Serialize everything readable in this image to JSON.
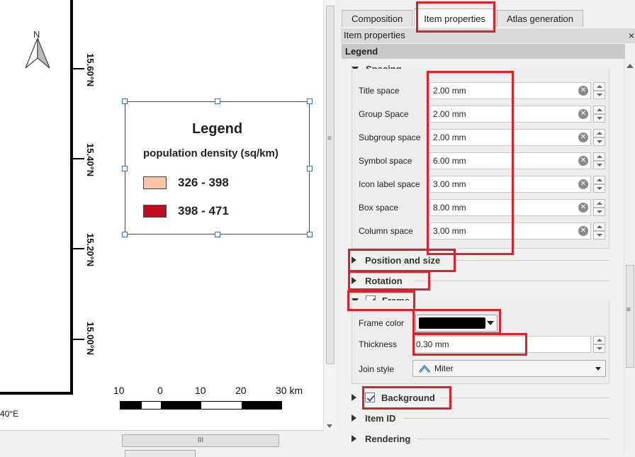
{
  "map": {
    "north_label": "N",
    "lat_labels": [
      "15.60°N",
      "15.40°N",
      "15.20°N",
      "15.00°N"
    ],
    "lon_label": "40°E",
    "legend": {
      "title": "Legend",
      "subtitle": "population density (sq/km)",
      "items": [
        {
          "label": "326 - 398",
          "color": "#fcc5a8"
        },
        {
          "label": "398 - 471",
          "color": "#c40a1f"
        }
      ]
    },
    "scale": {
      "labels": [
        "10",
        "0",
        "10",
        "20",
        "30 km"
      ]
    }
  },
  "hscroll_grip": "III",
  "panel": {
    "tabs": [
      {
        "label": "Composition",
        "active": false
      },
      {
        "label": "Item properties",
        "active": true
      },
      {
        "label": "Atlas generation",
        "active": false
      }
    ],
    "dock_title": "Item properties",
    "close_glyph": "×",
    "section": "Legend",
    "spacing": {
      "header": "Spacing",
      "rows": [
        {
          "label": "Title space",
          "value": "2.00 mm"
        },
        {
          "label": "Group Space",
          "value": "2.00 mm"
        },
        {
          "label": "Subgroup space",
          "value": "2.00 mm"
        },
        {
          "label": "Symbol space",
          "value": "6.00 mm"
        },
        {
          "label": "Icon label space",
          "value": "3.00 mm"
        },
        {
          "label": "Box space",
          "value": "8.00 mm"
        },
        {
          "label": "Column space",
          "value": "3.00 mm"
        }
      ]
    },
    "position_size": "Position and size",
    "rotation": "Rotation",
    "frame": {
      "header": "Frame",
      "checked": true,
      "color_label": "Frame color",
      "color_value": "#000000",
      "thickness_label": "Thickness",
      "thickness_value": "0.30 mm",
      "join_label": "Join style",
      "join_value": "Miter"
    },
    "background": {
      "header": "Background",
      "checked": true
    },
    "item_id": "Item ID",
    "rendering": "Rendering"
  },
  "highlight_color": "#d8232a"
}
